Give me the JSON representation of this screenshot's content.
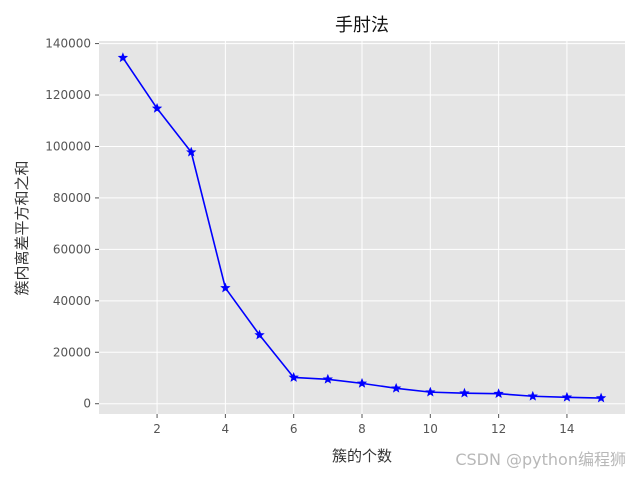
{
  "chart_data": {
    "type": "line",
    "title": "手肘法",
    "xlabel": "簇的个数",
    "ylabel": "簇内离差平方和之和",
    "x": [
      1,
      2,
      3,
      4,
      5,
      6,
      7,
      8,
      9,
      10,
      11,
      12,
      13,
      14,
      15
    ],
    "series": [
      {
        "values": [
          134500,
          114800,
          97800,
          45000,
          26700,
          10200,
          9500,
          7900,
          6000,
          4500,
          4100,
          3900,
          2900,
          2500,
          2200
        ],
        "color": "#0000ff",
        "marker": "star"
      }
    ],
    "xticks": [
      2,
      4,
      6,
      8,
      10,
      12,
      14
    ],
    "yticks": [
      0,
      20000,
      40000,
      60000,
      80000,
      100000,
      120000,
      140000
    ],
    "xlim": [
      0.3,
      15.7
    ],
    "ylim": [
      -4000,
      141000
    ],
    "grid": true,
    "style": "ggplot",
    "background_color": "#e5e5e5",
    "grid_color": "#ffffff"
  },
  "watermark": "CSDN @python编程狮"
}
